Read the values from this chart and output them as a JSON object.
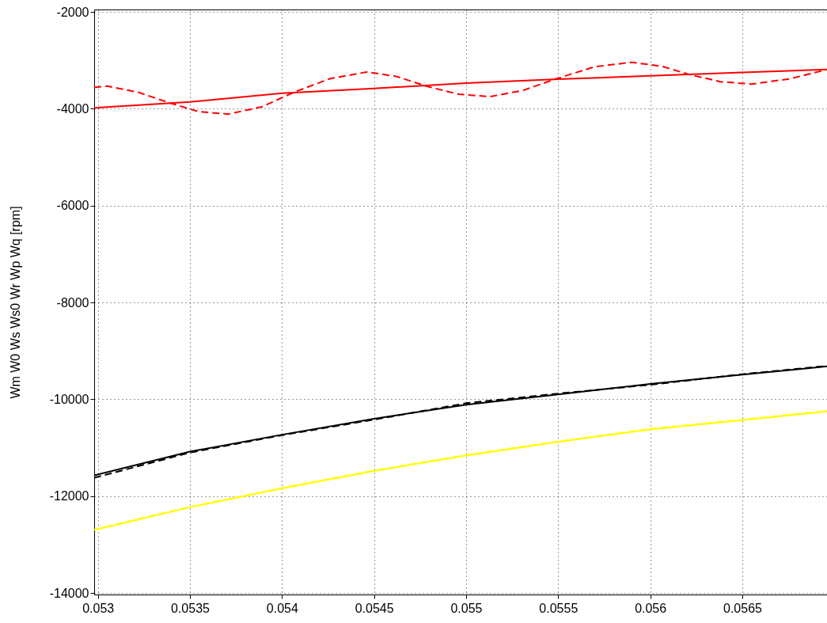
{
  "chart_data": {
    "type": "line",
    "ylabel": "Wm W0 Ws Ws0 Wr Wp Wq [rpm]",
    "xlim": [
      0.05298,
      0.05696
    ],
    "ylim": [
      -14030,
      -1950
    ],
    "xticks": [
      0.053,
      0.0535,
      0.054,
      0.0545,
      0.055,
      0.0555,
      0.056,
      0.0565
    ],
    "yticks": [
      -14000,
      -12000,
      -10000,
      -8000,
      -6000,
      -4000,
      -2000
    ],
    "grid": true,
    "series": [
      {
        "color": "#ff0000",
        "line_style": "solid",
        "x": [
          0.05298,
          0.0535,
          0.054,
          0.0545,
          0.055,
          0.0555,
          0.056,
          0.0565,
          0.05696
        ],
        "values": [
          -3980,
          -3860,
          -3680,
          -3580,
          -3470,
          -3390,
          -3320,
          -3250,
          -3190
        ]
      },
      {
        "color": "#ff0000",
        "line_style": "dashed",
        "x": [
          0.05298,
          0.05305,
          0.05322,
          0.05339,
          0.05355,
          0.05371,
          0.05389,
          0.05407,
          0.05426,
          0.05446,
          0.05462,
          0.05479,
          0.05496,
          0.05513,
          0.05531,
          0.05549,
          0.0557,
          0.0559,
          0.05606,
          0.05621,
          0.05638,
          0.05655,
          0.05676,
          0.05696
        ],
        "values": [
          -3560,
          -3530,
          -3660,
          -3880,
          -4060,
          -4110,
          -3960,
          -3650,
          -3380,
          -3240,
          -3330,
          -3540,
          -3700,
          -3750,
          -3620,
          -3380,
          -3130,
          -3040,
          -3120,
          -3290,
          -3440,
          -3490,
          -3380,
          -3190
        ]
      },
      {
        "color": "#000000",
        "line_style": "solid",
        "x": [
          0.05298,
          0.0535,
          0.054,
          0.0545,
          0.055,
          0.0555,
          0.056,
          0.0565,
          0.05696
        ],
        "values": [
          -11570,
          -11080,
          -10730,
          -10400,
          -10110,
          -9900,
          -9680,
          -9490,
          -9320
        ]
      },
      {
        "color": "#000000",
        "line_style": "dashed",
        "x": [
          0.05298,
          0.0535,
          0.054,
          0.0545,
          0.055,
          0.0555,
          0.056,
          0.0565,
          0.05696
        ],
        "values": [
          -11620,
          -11100,
          -10740,
          -10420,
          -10080,
          -9880,
          -9700,
          -9480,
          -9310
        ]
      },
      {
        "color": "#ffff00",
        "line_style": "solid",
        "x": [
          0.05298,
          0.0535,
          0.054,
          0.0545,
          0.055,
          0.0555,
          0.056,
          0.0565,
          0.05696
        ],
        "values": [
          -12700,
          -12230,
          -11840,
          -11480,
          -11160,
          -10880,
          -10620,
          -10430,
          -10250
        ]
      },
      {
        "color": "#ffff00",
        "line_style": "dashed",
        "x": [
          0.05298,
          0.0535,
          0.054,
          0.0545,
          0.055,
          0.0555,
          0.056,
          0.0565,
          0.05696
        ],
        "values": [
          -12690,
          -12220,
          -11830,
          -11470,
          -11150,
          -10870,
          -10610,
          -10420,
          -10240
        ]
      }
    ]
  }
}
